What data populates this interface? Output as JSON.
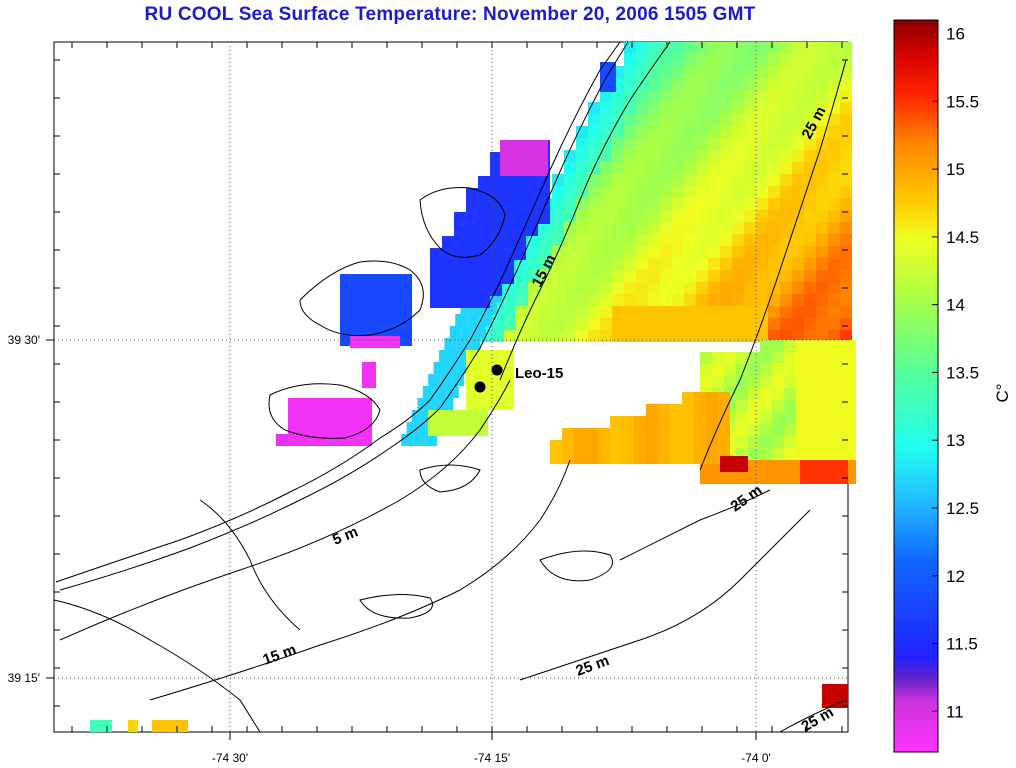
{
  "title": "RU COOL  Sea Surface Temperature:  November 20, 2006 1505 GMT",
  "map": {
    "x_ticks": [
      "-74 30'",
      "-74 15'",
      "-74 0'"
    ],
    "y_ticks": [
      "39 30'",
      "39 15'"
    ],
    "station": {
      "name": "Leo-15"
    },
    "contour_labels": [
      "5 m",
      "15 m",
      "15 m",
      "25 m",
      "25 m",
      "25 m",
      "25 m"
    ]
  },
  "colorbar": {
    "unit": "C°",
    "ticks": [
      "16",
      "15.5",
      "15",
      "14.5",
      "14",
      "13.5",
      "13",
      "12.5",
      "12",
      "11.5",
      "11"
    ],
    "min": 10.7,
    "max": 16.1
  },
  "colors": {
    "title": "#1a1ad0",
    "land_outline": "#000000"
  }
}
